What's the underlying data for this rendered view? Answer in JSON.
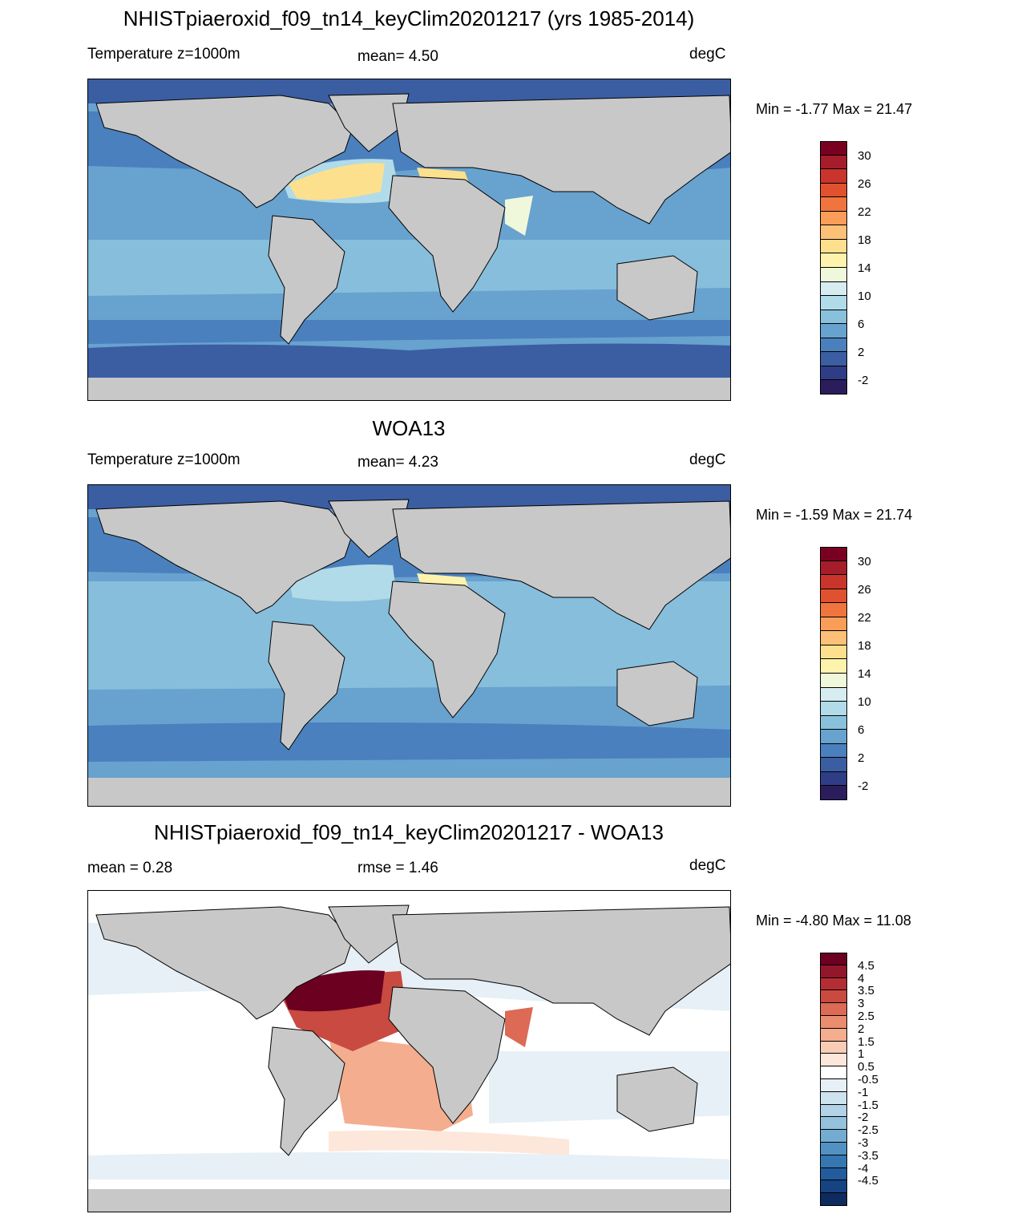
{
  "panels": [
    {
      "title": "NHISTpiaeroxid_f09_tn14_keyClim20201217 (yrs 1985-2014)",
      "left_label": "Temperature z=1000m",
      "center_label": "mean=   4.50",
      "units": "degC",
      "minmax": "Min =  -1.77 Max =  21.47",
      "kind": "temp"
    },
    {
      "title": "WOA13",
      "left_label": "Temperature z=1000m",
      "center_label": "mean=   4.23",
      "units": "degC",
      "minmax": "Min =  -1.59 Max =  21.74",
      "kind": "temp"
    },
    {
      "title": "NHISTpiaeroxid_f09_tn14_keyClim20201217 - WOA13",
      "left_label": "mean =   0.28",
      "center_label": "rmse =   1.46",
      "units": "degC",
      "minmax": "Min =  -4.80 Max =  11.08",
      "kind": "diff"
    }
  ],
  "temp_colorbar": {
    "colors": [
      "#7a0022",
      "#a51d2b",
      "#c9352c",
      "#e0512f",
      "#f0743d",
      "#f99d59",
      "#fcc077",
      "#fde08d",
      "#fdf3ac",
      "#f0f8dc",
      "#d6ecf0",
      "#b1dbe8",
      "#89c1dd",
      "#68a2cf",
      "#4a80bd",
      "#3b5ea2",
      "#2e3d85",
      "#2b1d5c"
    ],
    "labels": [
      "30",
      "26",
      "22",
      "18",
      "14",
      "10",
      "6",
      "2",
      "-2"
    ]
  },
  "diff_colorbar": {
    "colors": [
      "#6b0020",
      "#93172a",
      "#b42d35",
      "#c84a40",
      "#dc6a55",
      "#ea8c6e",
      "#f4ad8e",
      "#f9cdb5",
      "#fde6da",
      "#ffffff",
      "#e6f0f6",
      "#cde3ee",
      "#b2d3e7",
      "#94c1dc",
      "#74abd0",
      "#5292c2",
      "#3677b2",
      "#225c9d",
      "#164382",
      "#0d2b5e"
    ],
    "labels": [
      "4.5",
      "4",
      "3.5",
      "3",
      "2.5",
      "2",
      "1.5",
      "1",
      "0.5",
      "-0.5",
      "-1",
      "-1.5",
      "-2",
      "-2.5",
      "-3",
      "-3.5",
      "-4",
      "-4.5"
    ]
  }
}
